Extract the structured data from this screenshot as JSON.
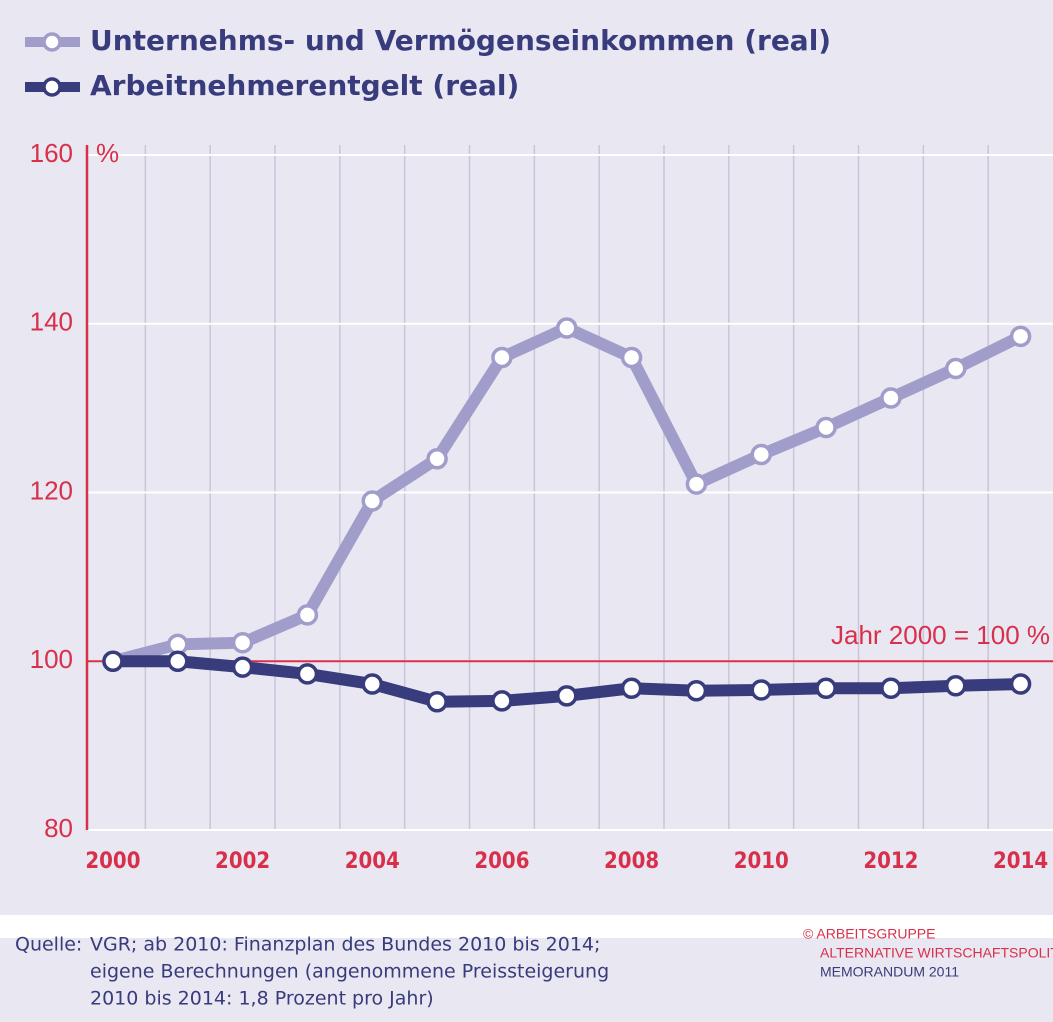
{
  "chart_data": {
    "type": "line",
    "unit_label": "%",
    "annotation": "Jahr 2000 = 100 %",
    "reference_line": 100,
    "x": [
      2000,
      2001,
      2002,
      2003,
      2004,
      2005,
      2006,
      2007,
      2008,
      2009,
      2010,
      2011,
      2012,
      2013,
      2014
    ],
    "series": [
      {
        "name": "Unternehms- und Vermögenseinkommen (real)",
        "color": "#a19dcb",
        "values": [
          100,
          102,
          102.2,
          105.5,
          119,
          124,
          136,
          139.5,
          136,
          121,
          124.5,
          127.7,
          131.2,
          134.7,
          138.5
        ]
      },
      {
        "name": "Arbeitnehmerentgelt (real)",
        "color": "#383b7c",
        "values": [
          100,
          100,
          99.3,
          98.5,
          97.3,
          95.2,
          95.3,
          95.9,
          96.8,
          96.5,
          96.6,
          96.8,
          96.8,
          97.1,
          97.3
        ]
      }
    ],
    "xlim": [
      1999.6,
      2014.5
    ],
    "xticks": [
      2000,
      2002,
      2004,
      2006,
      2008,
      2010,
      2012,
      2014
    ],
    "ylim": [
      80,
      160
    ],
    "yticks": [
      80,
      100,
      120,
      140,
      160
    ],
    "grid": true,
    "source_label": "Quelle:",
    "source_lines": [
      "VGR; ab 2010: Finanzplan des Bundes 2010 bis 2014;",
      "eigene Berechnungen (angenommene Preissteigerung",
      "2010 bis 2014: 1,8 Prozent pro Jahr)"
    ],
    "copyright_lines": [
      "© ARBEITSGRUPPE",
      "ALTERNATIVE WIRTSCHAFTSPOLIT",
      "MEMORANDUM 2011"
    ]
  }
}
